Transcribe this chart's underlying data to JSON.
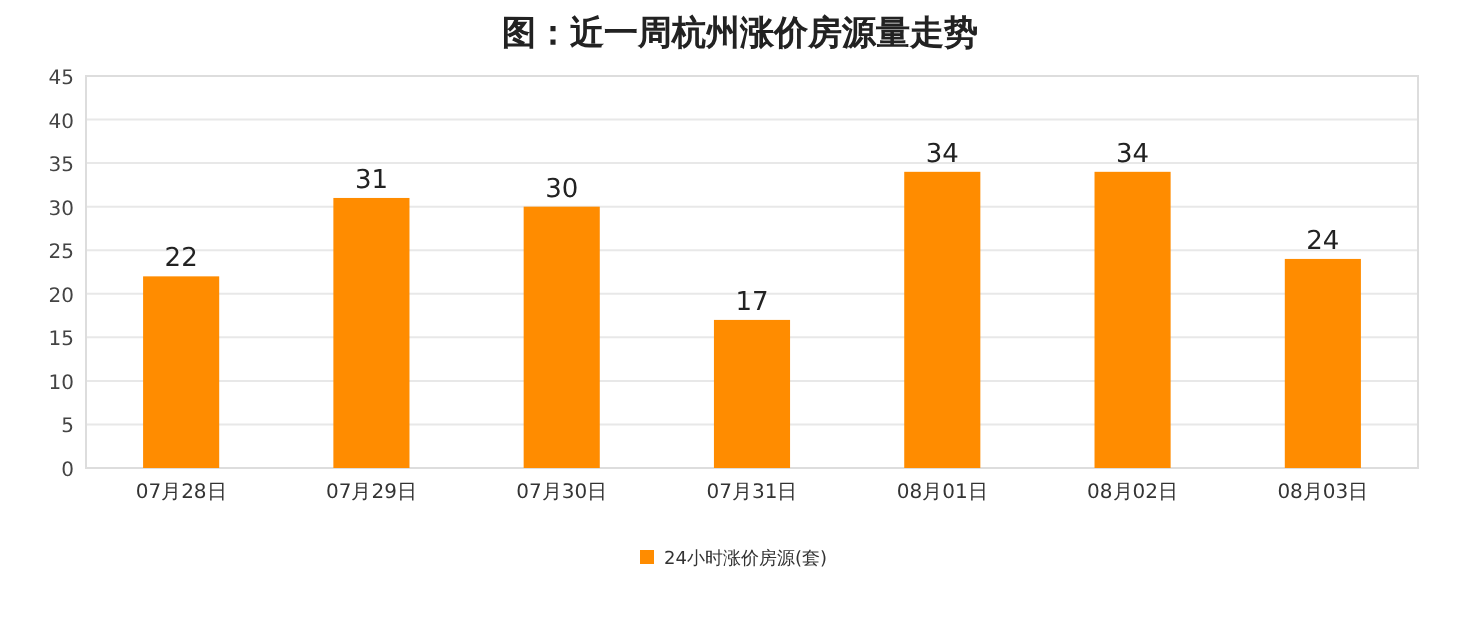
{
  "chart_data": {
    "type": "bar",
    "title": "图：近一周杭州涨价房源量走势",
    "categories": [
      "07月28日",
      "07月29日",
      "07月30日",
      "07月31日",
      "08月01日",
      "08月02日",
      "08月03日"
    ],
    "series": [
      {
        "name": "24小时涨价房源(套)",
        "color": "#ff8c00",
        "values": [
          22,
          31,
          30,
          17,
          34,
          34,
          24
        ]
      }
    ],
    "ylim": [
      0,
      45
    ],
    "yticks": [
      0,
      5,
      10,
      15,
      20,
      25,
      30,
      35,
      40,
      45
    ],
    "grid": "y",
    "legend": "bottom",
    "data_labels": true
  }
}
